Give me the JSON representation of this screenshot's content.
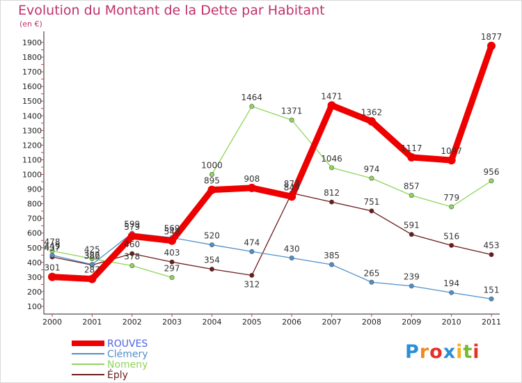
{
  "header": {
    "title": "Evolution du Montant de la Dette par Habitant",
    "subtitle": "(en €)"
  },
  "logo": {
    "letters": [
      "P",
      "r",
      "o",
      "x",
      "i",
      "t",
      "i"
    ],
    "colors": [
      "#2a8fd6",
      "#f08a1c",
      "#e5302a",
      "#2a8fd6",
      "#f2b01e",
      "#7ab82e",
      "#e5302a"
    ]
  },
  "chart_data": {
    "type": "line",
    "title": "Evolution du Montant de la Dette par Habitant",
    "subtitle": "(en €)",
    "x": [
      "2000",
      "2001",
      "2002",
      "2003",
      "2004",
      "2005",
      "2006",
      "2007",
      "2008",
      "2009",
      "2010",
      "2011"
    ],
    "ylim": [
      100,
      1900
    ],
    "yticks": [
      100,
      200,
      300,
      400,
      500,
      600,
      700,
      800,
      900,
      1000,
      1100,
      1200,
      1300,
      1400,
      1500,
      1600,
      1700,
      1800,
      1900
    ],
    "grid": false,
    "legend_position": "bottom-left",
    "series": [
      {
        "name": "Éply",
        "color": "#6b1a1a",
        "values": [
          437,
          382,
          460,
          403,
          354,
          312,
          873,
          812,
          751,
          591,
          516,
          453
        ]
      },
      {
        "name": "Nomeny",
        "color": "#8fd45a",
        "values": [
          478,
          425,
          378,
          297,
          1000,
          1464,
          1371,
          1046,
          974,
          857,
          779,
          956
        ]
      },
      {
        "name": "Clémery",
        "color": "#4f8fc9",
        "values": [
          449,
          386,
          599,
          569,
          520,
          474,
          430,
          385,
          265,
          239,
          194,
          151
        ]
      },
      {
        "name": "ROUVES",
        "color": "#ee0000",
        "values": [
          301,
          287,
          579,
          548,
          895,
          908,
          849,
          1471,
          1362,
          1117,
          1097,
          1877
        ]
      }
    ],
    "legend_order": [
      "ROUVES",
      "Clémery",
      "Nomeny",
      "Éply"
    ],
    "label_positions": {
      "ROUVES": [
        "above",
        "above",
        "above",
        "above",
        "above",
        "above",
        "above",
        "above",
        "above",
        "above",
        "above",
        "above"
      ],
      "Clémery": [
        "above",
        "above",
        "above",
        "above",
        "above",
        "above",
        "above",
        "above",
        "above",
        "above",
        "above",
        "above"
      ],
      "Nomeny": [
        "above",
        "above",
        "above",
        "above",
        "above",
        "above",
        "above",
        "above",
        "above",
        "above",
        "above",
        "above"
      ],
      "Éply": [
        "above",
        "above",
        "above",
        "above",
        "above",
        "below",
        "above",
        "above",
        "above",
        "above",
        "above",
        "above"
      ]
    },
    "line_break_after": {
      "Nomeny": 3
    }
  }
}
